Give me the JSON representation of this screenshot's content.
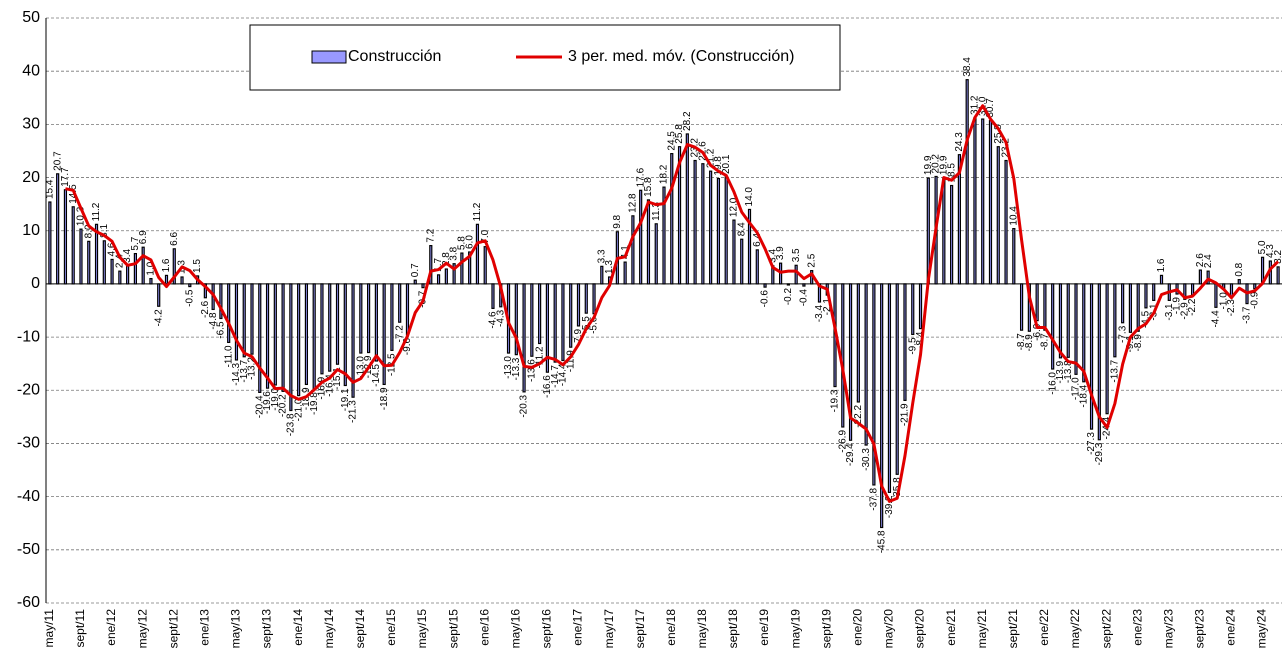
{
  "chart_data": {
    "type": "bar",
    "categories": [
      "may/11",
      null,
      null,
      null,
      "sept/11",
      null,
      null,
      null,
      "ene/12",
      null,
      null,
      null,
      "may/12",
      null,
      null,
      null,
      "sept/12",
      null,
      null,
      null,
      "ene/13",
      null,
      null,
      null,
      "may/13",
      null,
      null,
      null,
      "sept/13",
      null,
      null,
      null,
      "ene/14",
      null,
      null,
      null,
      "may/14",
      null,
      null,
      null,
      "sept/14",
      null,
      null,
      null,
      "ene/15",
      null,
      null,
      null,
      "may/15",
      null,
      null,
      null,
      "sept/15",
      null,
      null,
      null,
      "ene/16",
      null,
      null,
      null,
      "may/16",
      null,
      null,
      null,
      "sept/16",
      null,
      null,
      null,
      "ene/17",
      null,
      null,
      null,
      "may/17",
      null,
      null,
      null,
      "sept/17",
      null,
      null,
      null,
      "ene/18",
      null,
      null,
      null,
      "may/18",
      null,
      null,
      null,
      "sept/18",
      null,
      null,
      null,
      "ene/19",
      null,
      null,
      null,
      "may/19",
      null,
      null,
      null,
      "sept/19",
      null,
      null,
      null,
      "ene/20",
      null,
      null,
      null,
      "may/20",
      null,
      null,
      null,
      "sept/20",
      null,
      null,
      null,
      "ene/21",
      null,
      null,
      null,
      "may/21",
      null,
      null,
      null,
      "sept/21",
      null,
      null,
      null,
      "ene/22",
      null,
      null,
      null,
      "may/22",
      null,
      null,
      null,
      "sept/22",
      null,
      null,
      null,
      "ene/23",
      null,
      null,
      null,
      "may/23",
      null,
      null,
      null,
      "sept/23",
      null,
      null,
      null,
      "ene/24",
      null,
      null,
      null,
      "may/24",
      null,
      null
    ],
    "series": [
      {
        "name": "Construcción",
        "type": "bar",
        "color": "#9999ff",
        "values": [
          15.4,
          20.7,
          17.7,
          14.5,
          10.3,
          8,
          11.2,
          8.1,
          4.6,
          2.4,
          3.4,
          5.7,
          6.9,
          1,
          -4.2,
          1.6,
          6.6,
          1.3,
          -0.5,
          1.5,
          -2.6,
          -4.8,
          -6.5,
          -11,
          -14.3,
          -13.7,
          -13.2,
          -20.4,
          -19.6,
          -19,
          -20.2,
          -23.8,
          -21,
          -18.9,
          -19.8,
          -16.9,
          -16.4,
          -15.1,
          -19.1,
          -21.3,
          -13,
          -12.9,
          -14.5,
          -18.9,
          -12.5,
          -7.2,
          -9.6,
          0.7,
          -0.7,
          7.2,
          1.7,
          2.8,
          3.8,
          5.8,
          6,
          11.2,
          7,
          -4.6,
          -4.3,
          -13,
          -13.3,
          -20.3,
          -13.6,
          -11.2,
          -16.6,
          -14.7,
          -14.4,
          -11.9,
          -7.9,
          -5.5,
          -5.6,
          3.3,
          1.3,
          9.8,
          4.1,
          12.8,
          17.6,
          15.8,
          11.3,
          18.2,
          24.5,
          25.8,
          28.2,
          23.2,
          22.6,
          21.2,
          19.8,
          20.1,
          12,
          8.4,
          14,
          6.4,
          -0.6,
          3.4,
          3.9,
          -0.2,
          3.5,
          -0.4,
          2.5,
          -3.4,
          -2.1,
          -19.3,
          -26.9,
          -29.4,
          -22.2,
          -30.3,
          -37.8,
          -45.8,
          -39.2,
          -35.8,
          -21.9,
          -9.5,
          -8.4,
          19.9,
          20.2,
          19.9,
          18.5,
          24.3,
          38.4,
          31.2,
          31,
          30.7,
          25.8,
          23.2,
          10.4,
          -8.7,
          -8.9,
          -6.9,
          -8.7,
          -16,
          -13.9,
          -13.8,
          -17,
          -18.4,
          -27.3,
          -29.3,
          -24.4,
          -13.7,
          -7.3,
          -9.1,
          -8.9,
          -4.5,
          -3.1,
          1.6,
          -3.1,
          -1.9,
          -2.9,
          -2.2,
          2.6,
          2.4,
          -4.4,
          -1,
          -2.3,
          0.8,
          -3.7,
          -0.9,
          5,
          4.3,
          3.2
        ],
        "value_labels": [
          "15.4",
          "20.7",
          "17.7",
          "14.5",
          "10.3",
          "8.0",
          "11.2",
          "8.1",
          "4.6",
          "2.4",
          "3.4",
          "5.7",
          "6.9",
          "1.0",
          "-4.2",
          "1.6",
          "6.6",
          "1.3",
          "-0.5",
          "1.5",
          "-2.6",
          "-4.8",
          "-6.5",
          "-11.0",
          "-14.3",
          "-13.7",
          "-13.2",
          "-20.4",
          "-19.6",
          "-19.0",
          "-20.2",
          "-23.8",
          "-21.0",
          "-18.9",
          "-19.8",
          "-16.9",
          "-16.4",
          "-15.1",
          "-19.1",
          "-21.3",
          "-13.0",
          "-12.9",
          "-14.5",
          "-18.9",
          "-12.5",
          "-7.2",
          "-9.6",
          "0.7",
          "-0.7",
          "7.2",
          "1.7",
          "2.8",
          "3.8",
          "5.8",
          "6.0",
          "11.2",
          "7.0",
          "-4.6",
          "-4.3",
          "-13.0",
          "-13.3",
          "-20.3",
          "-13.6",
          "-11.2",
          "-16.6",
          "-14.7",
          "-14.4",
          "-11.9",
          "-7.9",
          "-5.5",
          "-5.6",
          "3.3",
          "1.3",
          "9.8",
          "4.1",
          "12.8",
          "17.6",
          "15.8",
          "11.3",
          "18.2",
          "24.5",
          "25.8",
          "28.2",
          "23.2",
          "22.6",
          "21.2",
          "19.8",
          "20.1",
          "12.0",
          "8.4",
          "14.0",
          "6.4",
          "-0.6",
          "3.4",
          "3.9",
          "-0.2",
          "3.5",
          "-0.4",
          "2.5",
          "-3.4",
          "-2.1",
          "-19.3",
          "-26.9",
          "-29.4",
          "-22.2",
          "-30.3",
          "-37.8",
          "-45.8",
          "-39.2",
          "-35.8",
          "-21.9",
          "-9.5",
          "-8.4",
          "19.9",
          "20.2",
          "19.9",
          "18.5",
          "24.3",
          "38.4",
          "31.2",
          "31.0",
          "30.7",
          "25.8",
          "23.2",
          "10.4",
          "-8.7",
          "-8.9",
          "-6.9",
          "-8.7",
          "-16.0",
          "-13.9",
          "-13.8",
          "-17.0",
          "-18.4",
          "-27.3",
          "-29.3",
          "-24.4",
          "-13.7",
          "-7.3",
          "-9.1",
          "-8.9",
          "-4.5",
          "-3.1",
          "1.6",
          "-3.1",
          "-1.9",
          "-2.9",
          "-2.2",
          "2.6",
          "2.4",
          "-4.4",
          "-1.0",
          "-2.3",
          "0.8",
          "-3.7",
          "-0.9",
          "5.0",
          "4.3",
          "3.2"
        ]
      },
      {
        "name": "3 per. med. móv. (Construcción)",
        "type": "line",
        "color": "#e00000",
        "values": [
          null,
          null,
          17.9,
          17.6,
          14.2,
          10.9,
          9.8,
          9.1,
          8.0,
          5.0,
          3.5,
          3.8,
          5.3,
          4.5,
          1.2,
          -0.5,
          1.3,
          3.2,
          2.5,
          0.8,
          -0.5,
          -2.0,
          -4.6,
          -7.4,
          -10.6,
          -13.0,
          -13.7,
          -15.8,
          -17.7,
          -19.7,
          -19.6,
          -21.0,
          -21.7,
          -21.2,
          -19.9,
          -18.5,
          -17.7,
          -16.1,
          -16.9,
          -18.5,
          -17.8,
          -15.7,
          -13.5,
          -15.4,
          -15.3,
          -12.9,
          -9.8,
          -5.4,
          -3.2,
          2.4,
          2.7,
          3.9,
          2.8,
          4.1,
          5.2,
          7.7,
          8.1,
          4.5,
          -0.6,
          -7.3,
          -10.2,
          -15.5,
          -15.7,
          -15.0,
          -13.8,
          -14.2,
          -15.2,
          -13.7,
          -11.4,
          -8.4,
          -6.3,
          -2.6,
          -0.3,
          4.8,
          5.1,
          8.9,
          11.5,
          15.4,
          14.9,
          15.1,
          18.0,
          22.8,
          26.2,
          25.7,
          24.7,
          22.3,
          21.2,
          20.4,
          17.3,
          13.5,
          11.5,
          9.6,
          6.6,
          3.1,
          2.2,
          2.4,
          2.4,
          1.0,
          1.9,
          -0.4,
          -1.0,
          -8.3,
          -16.1,
          -25.2,
          -26.2,
          -27.3,
          -30.1,
          -38.0,
          -40.9,
          -40.3,
          -32.3,
          -22.4,
          -13.3,
          0.7,
          10.6,
          20.0,
          19.5,
          20.9,
          27.1,
          31.3,
          33.5,
          31.0,
          29.2,
          26.6,
          19.8,
          8.3,
          -2.4,
          -8.2,
          -8.2,
          -10.5,
          -12.9,
          -14.6,
          -14.9,
          -16.4,
          -20.9,
          -25.0,
          -27.0,
          -22.5,
          -15.1,
          -10.0,
          -8.4,
          -7.5,
          -5.5,
          -2.0,
          -1.5,
          -1.1,
          -2.6,
          -2.3,
          -0.8,
          0.9,
          0.2,
          -1.0,
          -2.6,
          -0.8,
          -1.7,
          -1.3,
          0.1,
          2.8,
          4.2
        ]
      }
    ],
    "ylim": [
      -60,
      50
    ],
    "yticks": [
      -60,
      -50,
      -40,
      -30,
      -20,
      -10,
      0,
      10,
      20,
      30,
      40,
      50
    ],
    "grid": true,
    "legend": "top"
  }
}
